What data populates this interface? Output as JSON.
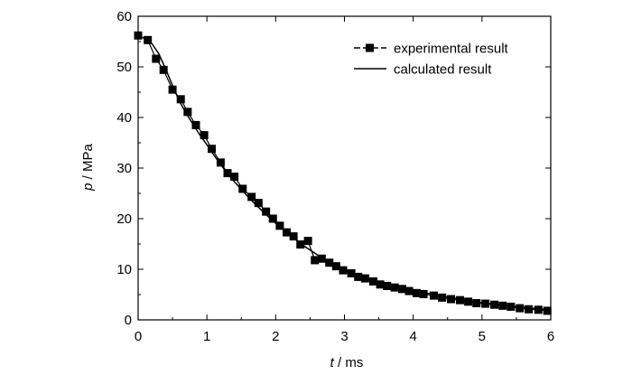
{
  "chart_data": {
    "type": "line",
    "title": "",
    "xlabel_italic": "t",
    "xlabel_unit": " / ms",
    "ylabel_italic": "p",
    "ylabel_unit": " / MPa",
    "xlim": [
      0,
      6
    ],
    "ylim": [
      0,
      60
    ],
    "xticks": [
      0,
      1,
      2,
      3,
      4,
      5,
      6
    ],
    "yticks": [
      0,
      10,
      20,
      30,
      40,
      50,
      60
    ],
    "grid": false,
    "legend_position": "top-right",
    "series": [
      {
        "name": "experimental result",
        "style": "line-with-square-markers",
        "color": "#000000",
        "x": [
          0.0,
          0.14,
          0.26,
          0.37,
          0.5,
          0.62,
          0.72,
          0.84,
          0.96,
          1.07,
          1.2,
          1.3,
          1.4,
          1.52,
          1.65,
          1.75,
          1.86,
          1.96,
          2.06,
          2.16,
          2.26,
          2.36,
          2.47,
          2.57,
          2.67,
          2.78,
          2.88,
          2.98,
          3.1,
          3.2,
          3.3,
          3.42,
          3.52,
          3.62,
          3.73,
          3.84,
          3.94,
          4.05,
          4.15,
          4.3,
          4.42,
          4.55,
          4.68,
          4.8,
          4.92,
          5.05,
          5.18,
          5.3,
          5.42,
          5.55,
          5.68,
          5.82,
          5.95
        ],
        "y": [
          56.2,
          55.3,
          51.6,
          49.4,
          45.5,
          43.6,
          41.1,
          38.5,
          36.5,
          33.8,
          31.1,
          29.0,
          28.3,
          25.9,
          24.3,
          23.1,
          21.4,
          20.0,
          18.6,
          17.3,
          16.5,
          14.9,
          15.6,
          11.8,
          12.1,
          11.3,
          10.6,
          9.8,
          9.2,
          8.5,
          8.2,
          7.6,
          7.0,
          6.7,
          6.4,
          6.1,
          5.7,
          5.3,
          5.1,
          4.8,
          4.4,
          4.1,
          3.9,
          3.6,
          3.3,
          3.2,
          3.0,
          2.8,
          2.6,
          2.3,
          2.1,
          2.0,
          1.8
        ]
      },
      {
        "name": "calculated result",
        "style": "line",
        "color": "#000000",
        "x": [
          0.0,
          0.1,
          0.2,
          0.3,
          0.4,
          0.5,
          0.6,
          0.7,
          0.8,
          0.9,
          1.0,
          1.1,
          1.2,
          1.3,
          1.4,
          1.5,
          1.6,
          1.7,
          1.8,
          1.9,
          2.0,
          2.2,
          2.4,
          2.6,
          2.8,
          3.0,
          3.2,
          3.4,
          3.6,
          3.8,
          4.0,
          4.2,
          4.5,
          4.8,
          5.0,
          5.3,
          5.6,
          5.8,
          6.0
        ],
        "y": [
          56.0,
          55.7,
          54.6,
          52.6,
          49.6,
          46.3,
          43.2,
          40.8,
          38.6,
          36.5,
          34.6,
          32.6,
          30.7,
          28.9,
          27.3,
          25.8,
          24.3,
          22.9,
          21.6,
          20.3,
          19.1,
          16.8,
          14.7,
          12.9,
          11.3,
          9.9,
          8.9,
          8.0,
          7.2,
          6.5,
          5.9,
          5.3,
          4.5,
          3.8,
          3.4,
          2.9,
          2.5,
          2.2,
          1.9
        ]
      }
    ]
  }
}
